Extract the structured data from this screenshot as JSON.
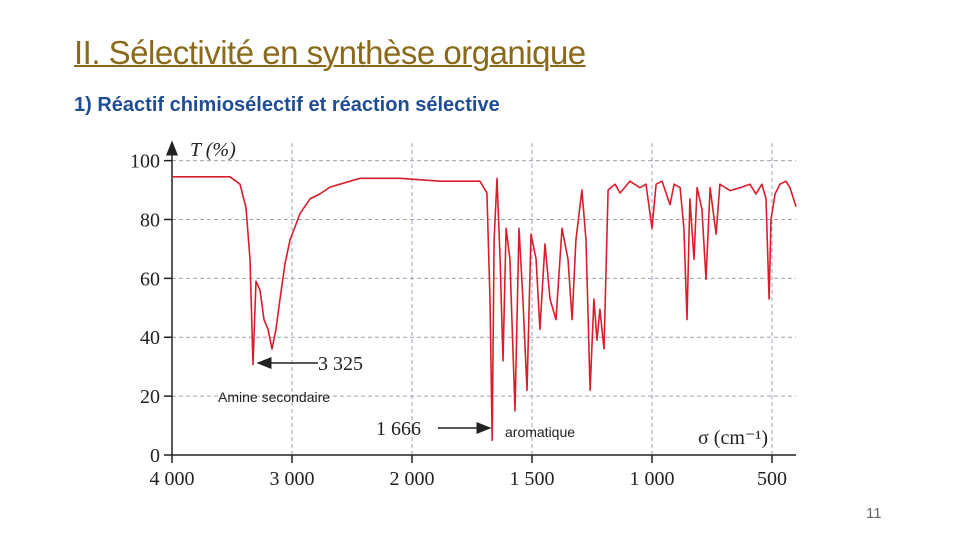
{
  "title": "II. Sélectivité en synthèse organique",
  "subtitle": "1) Réactif chimiosélectif et réaction sélective",
  "page_number": 11,
  "chart_data": {
    "type": "line",
    "y_label": "T (%)",
    "x_label": "σ (cm⁻¹)",
    "annotations": [
      "3 325",
      "1 666",
      "Amine secondaire",
      "aromatique"
    ],
    "xlim": [
      4000,
      400
    ],
    "ylim": [
      0,
      107
    ],
    "xticks": [
      {
        "value": 4000,
        "label": "4 000"
      },
      {
        "value": 3000,
        "label": "3 000"
      },
      {
        "value": 2000,
        "label": "2 000"
      },
      {
        "value": 1500,
        "label": "1 500"
      },
      {
        "value": 1000,
        "label": "1 000"
      },
      500
    ],
    "yticks": [
      0,
      20,
      40,
      60,
      80,
      100
    ],
    "grid": true,
    "series": [
      {
        "color": "#d81e2c",
        "x": [
          4000,
          3517,
          3433,
          3383,
          3350,
          3325,
          3300,
          3267,
          3233,
          3200,
          3167,
          3133,
          3100,
          3058,
          3017,
          2933,
          2850,
          2767,
          2683,
          2558,
          2433,
          2100,
          1883,
          1717,
          1688,
          1675,
          1666,
          1658,
          1646,
          1633,
          1621,
          1608,
          1592,
          1571,
          1554,
          1538,
          1521,
          1504,
          1483,
          1467,
          1446,
          1425,
          1400,
          1375,
          1350,
          1333,
          1317,
          1292,
          1275,
          1258,
          1242,
          1229,
          1217,
          1200,
          1183,
          1154,
          1133,
          1092,
          1050,
          1025,
          1000,
          983,
          958,
          925,
          908,
          883,
          867,
          854,
          842,
          825,
          812,
          792,
          775,
          758,
          733,
          717,
          675,
          633,
          592,
          567,
          542,
          525,
          512,
          504,
          487,
          467,
          442,
          425,
          400
        ],
        "values": [
          94.5,
          94.5,
          92,
          84,
          66.5,
          30.7,
          59,
          56,
          46,
          42.7,
          36,
          42.7,
          53,
          65,
          73,
          82,
          87,
          88.7,
          91,
          92.5,
          94,
          94,
          93,
          93,
          89,
          53,
          5,
          73,
          94,
          66.5,
          32,
          77,
          66.5,
          15,
          77,
          53,
          22,
          75,
          66.5,
          42.7,
          71.7,
          53,
          46,
          77,
          66.5,
          46,
          73,
          90,
          73,
          22,
          53,
          39,
          49.5,
          36,
          90,
          92,
          89,
          93,
          90.8,
          92,
          77,
          92,
          93,
          85,
          92,
          90.8,
          77,
          46,
          87,
          66.5,
          90.8,
          83.6,
          59.7,
          90.8,
          75,
          92,
          89.8,
          90.8,
          92,
          88.7,
          92,
          87,
          53,
          80,
          88.7,
          92,
          93,
          90.8,
          84.3
        ]
      }
    ]
  }
}
